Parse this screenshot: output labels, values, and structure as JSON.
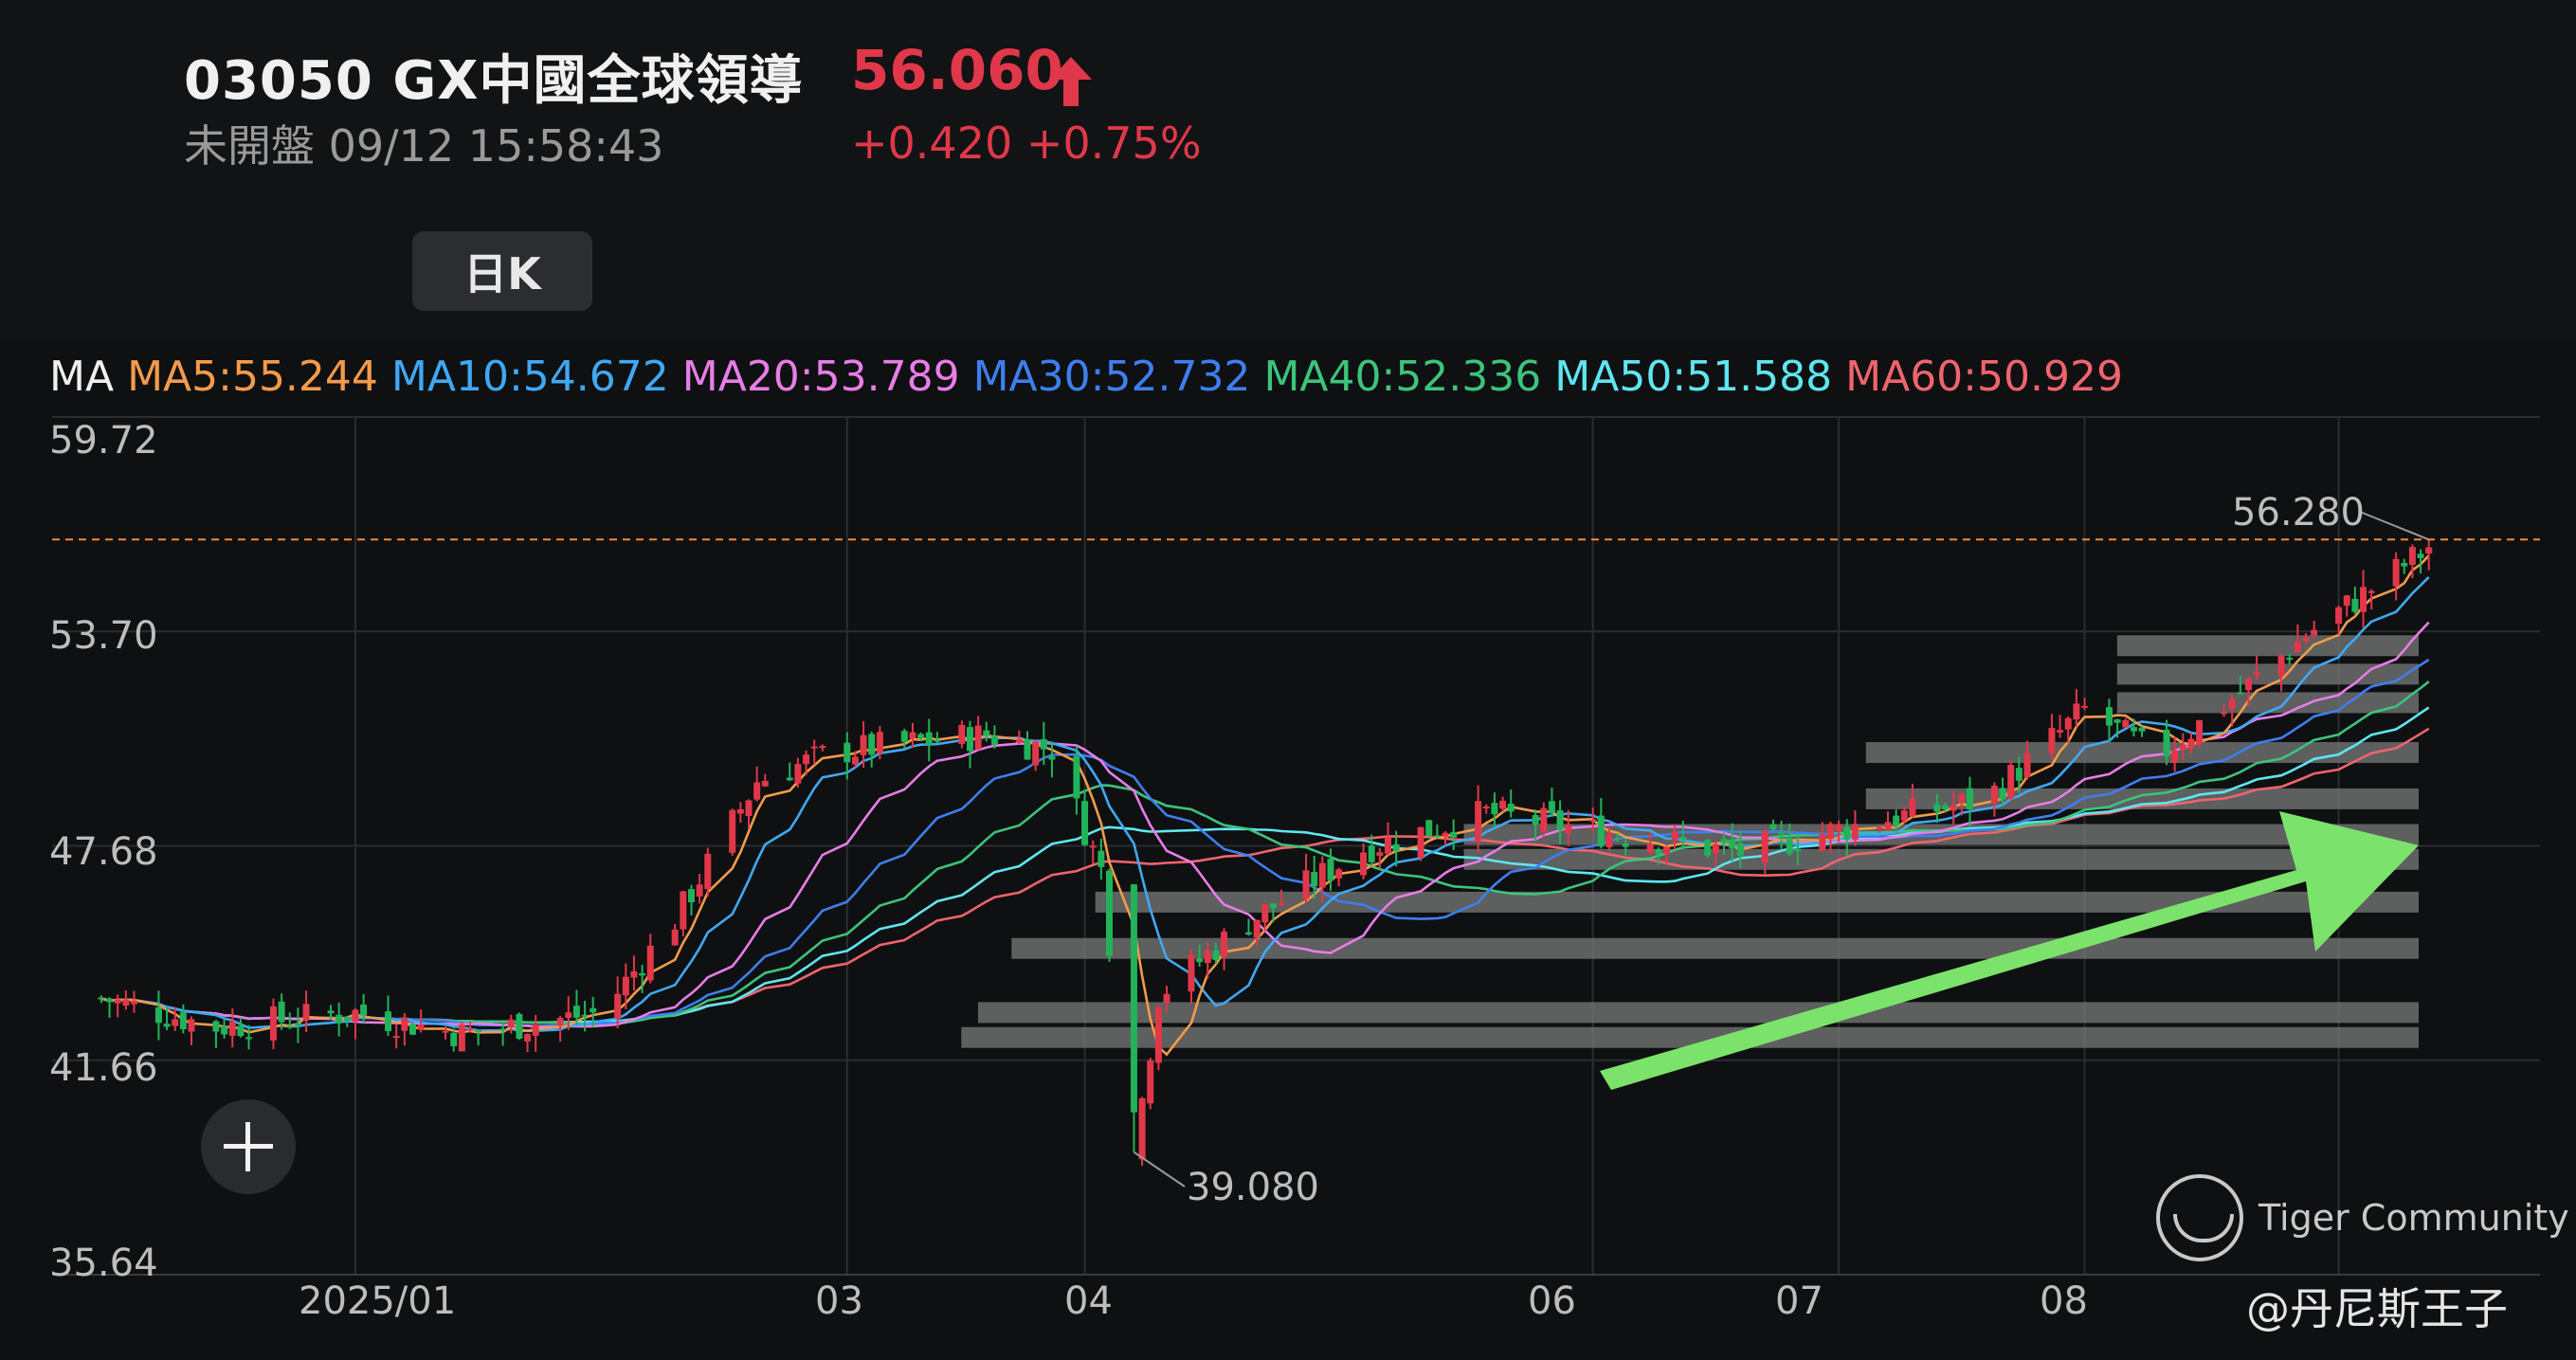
{
  "header": {
    "symbol": "03050  GX中國全球領導",
    "price": "56.060",
    "status": "未開盤 09/12 15:58:43",
    "change": "+0.420 +0.75%",
    "period_button": "日K",
    "price_color": "#e0384a"
  },
  "ma_legend": {
    "prefix": "MA",
    "items": [
      {
        "label": "MA5:55.244",
        "color": "#f39b4b"
      },
      {
        "label": "MA10:54.672",
        "color": "#3fa9f5"
      },
      {
        "label": "MA20:53.789",
        "color": "#e87de8"
      },
      {
        "label": "MA30:52.732",
        "color": "#3e7ff0"
      },
      {
        "label": "MA40:52.336",
        "color": "#3cc47c"
      },
      {
        "label": "MA50:51.588",
        "color": "#5ee6f0"
      },
      {
        "label": "MA60:50.929",
        "color": "#f0646e"
      }
    ]
  },
  "axes": {
    "y_ticks": [
      "59.72",
      "53.70",
      "47.68",
      "41.66",
      "35.64"
    ],
    "x_ticks": [
      "2025/01",
      "03",
      "04",
      "06",
      "07",
      "08"
    ]
  },
  "annotations": {
    "high": "56.280",
    "low": "39.080"
  },
  "watermark": {
    "brand": "Tiger Community",
    "author": "@丹尼斯王子"
  },
  "chart_data": {
    "type": "candlestick",
    "title": "",
    "ylim": [
      35.64,
      59.72
    ],
    "y_ticks": [
      59.72,
      53.7,
      47.68,
      41.66,
      35.64
    ],
    "x_ticks": [
      "2025/01",
      "03",
      "04",
      "06",
      "07",
      "08"
    ],
    "reference_line": 56.28,
    "high_label": 56.28,
    "low_label": 39.08,
    "close_trend": [
      [
        "2024-12-02",
        43.4
      ],
      [
        "2024-12-16",
        42.6
      ],
      [
        "2025-01-02",
        43.0
      ],
      [
        "2025-01-15",
        42.4
      ],
      [
        "2025-02-01",
        43.0
      ],
      [
        "2025-02-10",
        45.6
      ],
      [
        "2025-02-20",
        49.5
      ],
      [
        "2025-03-01",
        50.3
      ],
      [
        "2025-03-12",
        50.6
      ],
      [
        "2025-03-20",
        50.8
      ],
      [
        "2025-03-28",
        50.4
      ],
      [
        "2025-04-03",
        47.0
      ],
      [
        "2025-04-07",
        39.1
      ],
      [
        "2025-04-10",
        43.5
      ],
      [
        "2025-04-20",
        45.4
      ],
      [
        "2025-05-05",
        47.6
      ],
      [
        "2025-05-20",
        48.6
      ],
      [
        "2025-06-05",
        48.0
      ],
      [
        "2025-06-20",
        47.5
      ],
      [
        "2025-07-05",
        48.3
      ],
      [
        "2025-07-20",
        49.0
      ],
      [
        "2025-08-01",
        51.5
      ],
      [
        "2025-08-10",
        50.2
      ],
      [
        "2025-08-20",
        52.0
      ],
      [
        "2025-08-28",
        53.6
      ],
      [
        "2025-09-05",
        54.9
      ],
      [
        "2025-09-12",
        56.06
      ]
    ],
    "ma_series": [
      {
        "name": "MA5",
        "color": "#f39b4b",
        "last": 55.244
      },
      {
        "name": "MA10",
        "color": "#3fa9f5",
        "last": 54.672
      },
      {
        "name": "MA20",
        "color": "#e87de8",
        "last": 53.789
      },
      {
        "name": "MA30",
        "color": "#3e7ff0",
        "last": 52.732
      },
      {
        "name": "MA40",
        "color": "#3cc47c",
        "last": 52.336
      },
      {
        "name": "MA50",
        "color": "#5ee6f0",
        "last": 51.588
      },
      {
        "name": "MA60",
        "color": "#f0646e",
        "last": 50.929
      }
    ],
    "volume_profile": [
      {
        "price": 53.3,
        "weight": 0.18
      },
      {
        "price": 52.5,
        "weight": 0.18
      },
      {
        "price": 51.7,
        "weight": 0.18
      },
      {
        "price": 50.3,
        "weight": 0.33
      },
      {
        "price": 49.0,
        "weight": 0.33
      },
      {
        "price": 48.0,
        "weight": 0.57
      },
      {
        "price": 47.3,
        "weight": 0.57
      },
      {
        "price": 46.1,
        "weight": 0.79
      },
      {
        "price": 44.8,
        "weight": 0.84
      },
      {
        "price": 43.0,
        "weight": 0.86
      },
      {
        "price": 42.3,
        "weight": 0.87
      }
    ]
  }
}
